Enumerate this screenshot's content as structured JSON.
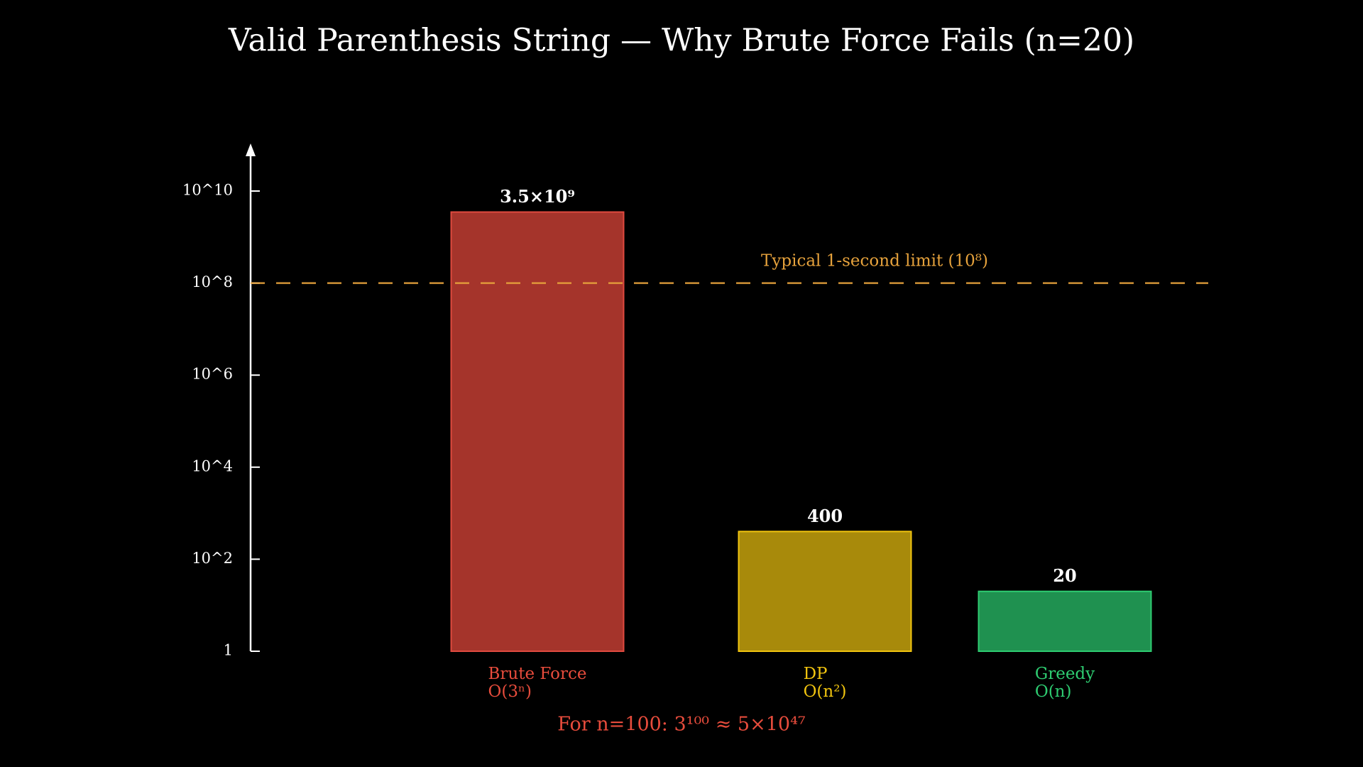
{
  "chart_data": {
    "type": "bar",
    "title": "Valid Parenthesis String — Why Brute Force Fails (n=20)",
    "categories": [
      "Brute Force",
      "DP",
      "Greedy"
    ],
    "complexities": [
      "O(3ⁿ)",
      "O(n²)",
      "O(n)"
    ],
    "values": [
      3500000000,
      400,
      20
    ],
    "value_labels": [
      "3.5×10⁹",
      "400",
      "20"
    ],
    "colors": [
      "#a5342b",
      "#a88a0b",
      "#1f9150"
    ],
    "edge_colors": [
      "#e04a3f",
      "#f1c40f",
      "#2ecc71"
    ],
    "label_colors": [
      "#e74c3c",
      "#f1c40f",
      "#2ecc71"
    ],
    "log_scale": true,
    "ylim": [
      1,
      100000000000
    ],
    "yticks": [
      {
        "value": 1,
        "label": "1"
      },
      {
        "value": 100,
        "label": "10^2"
      },
      {
        "value": 10000,
        "label": "10^4"
      },
      {
        "value": 1000000,
        "label": "10^6"
      },
      {
        "value": 100000000,
        "label": "10^8"
      },
      {
        "value": 10000000000,
        "label": "10^10"
      }
    ],
    "reference_line": {
      "value": 100000000,
      "label": "Typical 1-second limit (10⁸)",
      "color": "#e6a23c"
    },
    "footnote": "For n=100: 3¹⁰⁰ ≈ 5×10⁴⁷",
    "footnote_color": "#e74c3c"
  }
}
